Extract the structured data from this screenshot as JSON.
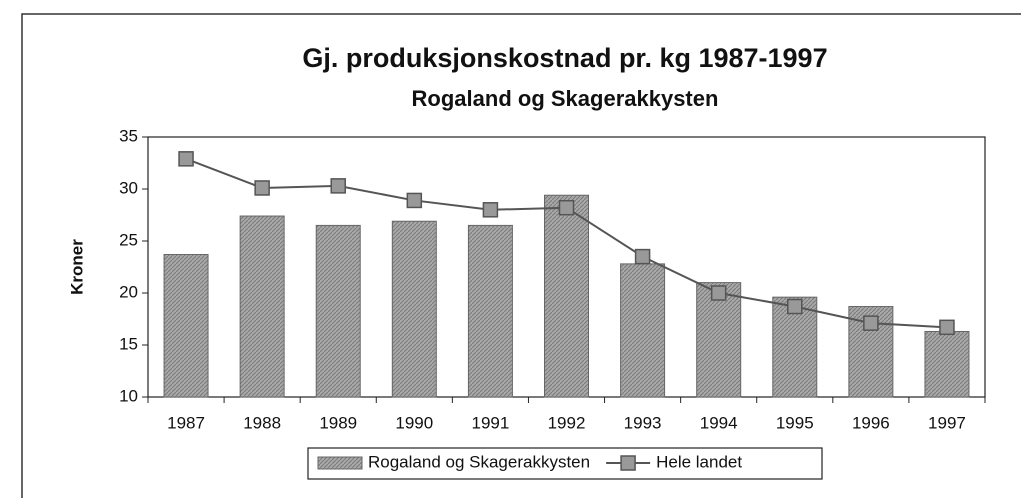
{
  "chart_data": {
    "type": "bar",
    "title": "Gj. produksjonskostnad pr. kg 1987-1997",
    "subtitle": "Rogaland og Skagerakkysten",
    "y_label": "Kroner",
    "categories": [
      "1987",
      "1988",
      "1989",
      "1990",
      "1991",
      "1992",
      "1993",
      "1994",
      "1995",
      "1996",
      "1997"
    ],
    "series": [
      {
        "name": "Rogaland og Skagerakkysten",
        "type": "bar",
        "color": "#9c9c9c",
        "values": [
          23.7,
          27.4,
          26.5,
          26.9,
          26.5,
          29.4,
          22.8,
          21.0,
          19.6,
          18.7,
          16.3
        ]
      },
      {
        "name": "Hele landet",
        "type": "line",
        "color": "#555555",
        "values": [
          32.9,
          30.1,
          30.3,
          28.9,
          28.0,
          28.2,
          23.5,
          20.0,
          18.7,
          17.1,
          16.7
        ]
      }
    ],
    "ylim": [
      10,
      35
    ],
    "yticks": [
      10,
      15,
      20,
      25,
      30,
      35
    ],
    "grid": false,
    "legend": "bottom"
  }
}
